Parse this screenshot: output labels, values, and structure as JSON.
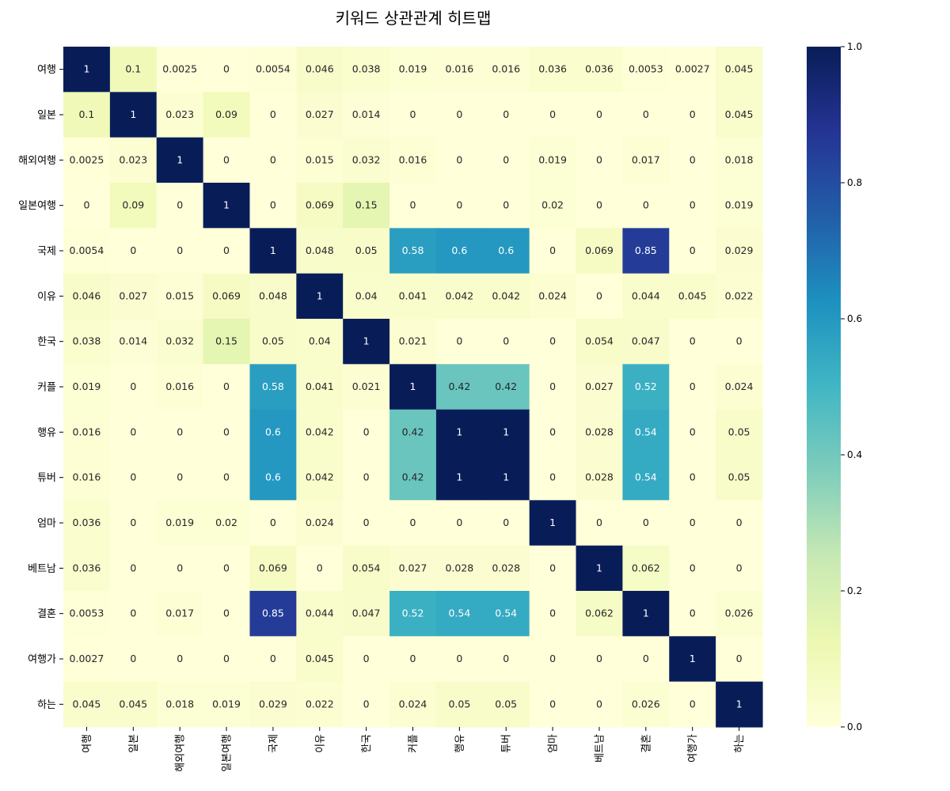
{
  "chart_data": {
    "type": "heatmap",
    "title": "키워드 상관관계 히트맵",
    "row_labels": [
      "여행",
      "일본",
      "해외여행",
      "일본여행",
      "국제",
      "이유",
      "한국",
      "커플",
      "행유",
      "튜버",
      "엄마",
      "베트남",
      "결혼",
      "여행가",
      "하는"
    ],
    "col_labels": [
      "여행",
      "일본",
      "해외여행",
      "일본여행",
      "국제",
      "이유",
      "한국",
      "커플",
      "행유",
      "튜버",
      "엄마",
      "베트남",
      "결혼",
      "여행가",
      "하는"
    ],
    "values": [
      [
        1,
        0.1,
        0.0025,
        0,
        0.0054,
        0.046,
        0.038,
        0.019,
        0.016,
        0.016,
        0.036,
        0.036,
        0.0053,
        0.0027,
        0.045
      ],
      [
        0.1,
        1,
        0.023,
        0.09,
        0,
        0.027,
        0.014,
        0,
        0,
        0,
        0,
        0,
        0,
        0,
        0.045
      ],
      [
        0.0025,
        0.023,
        1,
        0,
        0,
        0.015,
        0.032,
        0.016,
        0,
        0,
        0.019,
        0,
        0.017,
        0,
        0.018
      ],
      [
        0,
        0.09,
        0,
        1,
        0,
        0.069,
        0.15,
        0,
        0,
        0,
        0.02,
        0,
        0,
        0,
        0.019
      ],
      [
        0.0054,
        0,
        0,
        0,
        1,
        0.048,
        0.05,
        0.58,
        0.6,
        0.6,
        0,
        0.069,
        0.85,
        0,
        0.029
      ],
      [
        0.046,
        0.027,
        0.015,
        0.069,
        0.048,
        1,
        0.04,
        0.041,
        0.042,
        0.042,
        0.024,
        0,
        0.044,
        0.045,
        0.022
      ],
      [
        0.038,
        0.014,
        0.032,
        0.15,
        0.05,
        0.04,
        1,
        0.021,
        0,
        0,
        0,
        0.054,
        0.047,
        0,
        0
      ],
      [
        0.019,
        0,
        0.016,
        0,
        0.58,
        0.041,
        0.021,
        1,
        0.42,
        0.42,
        0,
        0.027,
        0.52,
        0,
        0.024
      ],
      [
        0.016,
        0,
        0,
        0,
        0.6,
        0.042,
        0,
        0.42,
        1,
        1,
        0,
        0.028,
        0.54,
        0,
        0.05
      ],
      [
        0.016,
        0,
        0,
        0,
        0.6,
        0.042,
        0,
        0.42,
        1,
        1,
        0,
        0.028,
        0.54,
        0,
        0.05
      ],
      [
        0.036,
        0,
        0.019,
        0.02,
        0,
        0.024,
        0,
        0,
        0,
        0,
        1,
        0,
        0,
        0,
        0
      ],
      [
        0.036,
        0,
        0,
        0,
        0.069,
        0,
        0.054,
        0.027,
        0.028,
        0.028,
        0,
        1,
        0.062,
        0,
        0
      ],
      [
        0.0053,
        0,
        0.017,
        0,
        0.85,
        0.044,
        0.047,
        0.52,
        0.54,
        0.54,
        0,
        0.062,
        1,
        0,
        0.026
      ],
      [
        0.0027,
        0,
        0,
        0,
        0,
        0.045,
        0,
        0,
        0,
        0,
        0,
        0,
        0,
        1,
        0
      ],
      [
        0.045,
        0.045,
        0.018,
        0.019,
        0.029,
        0.022,
        0,
        0.024,
        0.05,
        0.05,
        0,
        0,
        0.026,
        0,
        1
      ]
    ],
    "colorbar": {
      "range": [
        0,
        1
      ],
      "ticks": [
        "0.0",
        "0.2",
        "0.4",
        "0.6",
        "0.8",
        "1.0"
      ],
      "colormap": "YlGnBu"
    }
  }
}
